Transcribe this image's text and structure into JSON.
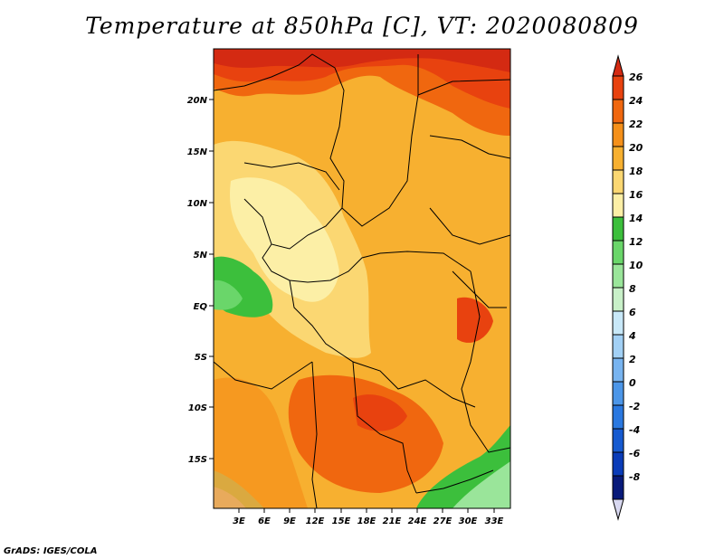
{
  "title": "Temperature at 850hPa [C], VT: 2020080809",
  "credit": "GrADS: IGES/COLA",
  "map": {
    "lat_labels": [
      "20N",
      "15N",
      "10N",
      "5N",
      "EQ",
      "5S",
      "10S",
      "15S"
    ],
    "lon_labels": [
      "3E",
      "6E",
      "9E",
      "12E",
      "15E",
      "18E",
      "21E",
      "24E",
      "27E",
      "30E",
      "33E"
    ]
  },
  "colorbar": {
    "labels": [
      "26",
      "24",
      "22",
      "20",
      "18",
      "16",
      "14",
      "12",
      "10",
      "8",
      "6",
      "4",
      "2",
      "0",
      "-2",
      "-4",
      "-6",
      "-8"
    ],
    "colors": [
      "#d42a12",
      "#e8420f",
      "#f0670f",
      "#f5901a",
      "#f7b030",
      "#fbd772",
      "#fcefa6",
      "#3cbf3c",
      "#6ad66a",
      "#9ae59a",
      "#c8f0c8",
      "#c8e8f8",
      "#a2d0f5",
      "#78b4f0",
      "#4c96e8",
      "#2a78e0",
      "#165ad0",
      "#0a3cb8",
      "#081a7a",
      "#d8d8f0"
    ]
  }
}
